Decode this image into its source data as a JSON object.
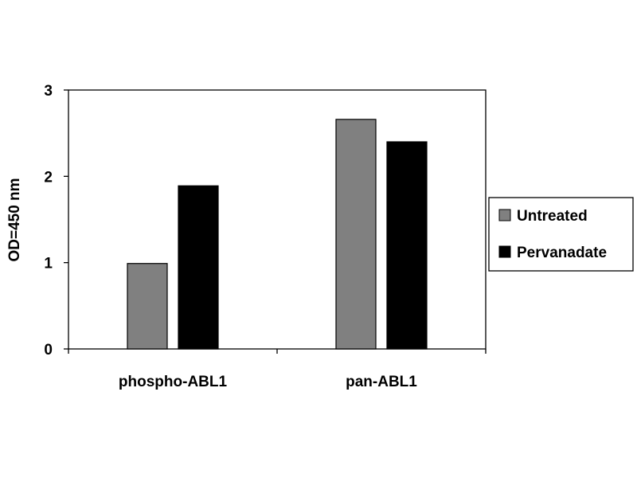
{
  "chart_data": {
    "type": "bar",
    "title": "",
    "xlabel": "",
    "ylabel": "OD=450 nm",
    "ylim": [
      0,
      3
    ],
    "yticks": [
      "0",
      "1",
      "2",
      "3"
    ],
    "categories": [
      "phospho-ABL1",
      "pan-ABL1"
    ],
    "series": [
      {
        "name": "Untreated",
        "values": [
          0.99,
          2.66
        ],
        "color": "#808080"
      },
      {
        "name": "Pervanadate",
        "values": [
          1.89,
          2.4
        ],
        "color": "#000000"
      }
    ],
    "grid": false,
    "legend": "right"
  }
}
